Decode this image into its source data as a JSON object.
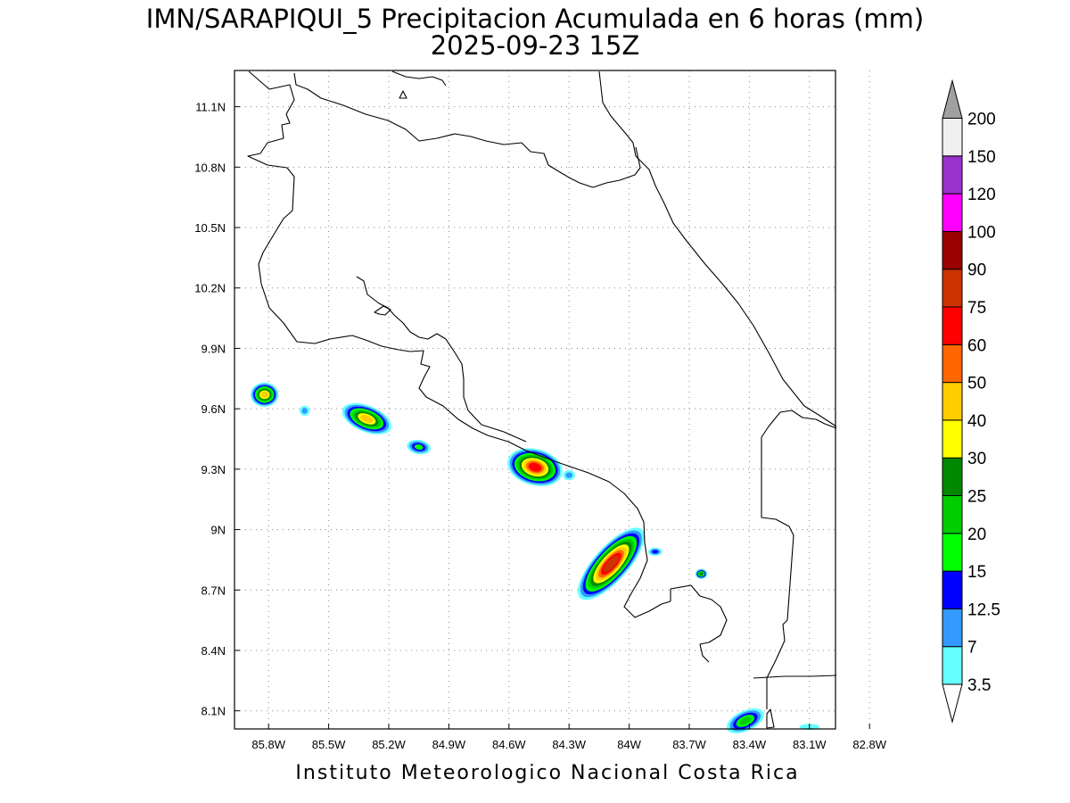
{
  "header": {
    "title_line1": "IMN/SARAPIQUI_5 Precipitacion Acumulada en 6 horas (mm)",
    "title_line2": "2025-09-23 15Z"
  },
  "footer": {
    "credit": "Instituto Meteorologico Nacional Costa Rica"
  },
  "axes": {
    "lon_ticks": [
      "85.8W",
      "85.5W",
      "85.2W",
      "84.9W",
      "84.6W",
      "84.3W",
      "84W",
      "83.7W",
      "83.4W",
      "83.1W",
      "82.8W"
    ],
    "lat_ticks": [
      "11.1N",
      "10.8N",
      "10.5N",
      "10.2N",
      "9.9N",
      "9.6N",
      "9.3N",
      "9N",
      "8.7N",
      "8.4N",
      "8.1N"
    ],
    "lon_range": [
      -85.97,
      -82.97
    ],
    "lat_range": [
      8.01,
      11.28
    ],
    "grid": "dotted"
  },
  "colorbar": {
    "levels": [
      {
        "label": "3.5",
        "color": "#66ffff"
      },
      {
        "label": "7",
        "color": "#3399ff"
      },
      {
        "label": "12.5",
        "color": "#0000ff"
      },
      {
        "label": "15",
        "color": "#00ff00"
      },
      {
        "label": "20",
        "color": "#00cc00"
      },
      {
        "label": "25",
        "color": "#008800"
      },
      {
        "label": "30",
        "color": "#ffff00"
      },
      {
        "label": "40",
        "color": "#ffcc00"
      },
      {
        "label": "50",
        "color": "#ff6600"
      },
      {
        "label": "60",
        "color": "#ff0000"
      },
      {
        "label": "75",
        "color": "#cc3300"
      },
      {
        "label": "90",
        "color": "#990000"
      },
      {
        "label": "100",
        "color": "#ff00ff"
      },
      {
        "label": "120",
        "color": "#9933cc"
      },
      {
        "label": "150",
        "color": "#f0f0f0"
      },
      {
        "label": "200",
        "color": "#a0a0a0"
      }
    ]
  },
  "precip_cells": [
    {
      "name": "cell-85.8w-9.67n",
      "lon": -85.82,
      "lat": 9.67,
      "rx": 0.07,
      "ry": 0.06,
      "rot": 0,
      "peak_mm": 40
    },
    {
      "name": "cell-85.6w-9.59n",
      "lon": -85.62,
      "lat": 9.59,
      "rx": 0.025,
      "ry": 0.025,
      "rot": 0,
      "peak_mm": 7
    },
    {
      "name": "cell-85.3w-9.55n",
      "lon": -85.31,
      "lat": 9.55,
      "rx": 0.13,
      "ry": 0.065,
      "rot": 22,
      "peak_mm": 40
    },
    {
      "name": "cell-85.05w-9.41n",
      "lon": -85.05,
      "lat": 9.41,
      "rx": 0.06,
      "ry": 0.035,
      "rot": 10,
      "peak_mm": 15
    },
    {
      "name": "cell-84.47w-9.31n",
      "lon": -84.47,
      "lat": 9.31,
      "rx": 0.14,
      "ry": 0.09,
      "rot": 15,
      "peak_mm": 60
    },
    {
      "name": "cell-84.3w-9.27n",
      "lon": -84.3,
      "lat": 9.27,
      "rx": 0.03,
      "ry": 0.025,
      "rot": 0,
      "peak_mm": 7
    },
    {
      "name": "cell-84.1w-8.83n",
      "lon": -84.09,
      "lat": 8.83,
      "rx": 0.23,
      "ry": 0.085,
      "rot": -48,
      "peak_mm": 75
    },
    {
      "name": "cell-83.87w-8.89n",
      "lon": -83.87,
      "lat": 8.89,
      "rx": 0.035,
      "ry": 0.02,
      "rot": 0,
      "peak_mm": 12.5
    },
    {
      "name": "cell-83.64w-8.78n",
      "lon": -83.64,
      "lat": 8.78,
      "rx": 0.03,
      "ry": 0.025,
      "rot": 0,
      "peak_mm": 25
    },
    {
      "name": "cell-83.42w-8.05n",
      "lon": -83.42,
      "lat": 8.05,
      "rx": 0.1,
      "ry": 0.05,
      "rot": -25,
      "peak_mm": 20
    },
    {
      "name": "cell-83.1w-8.02n",
      "lon": -83.1,
      "lat": 8.02,
      "rx": 0.05,
      "ry": 0.015,
      "rot": 0,
      "peak_mm": 3.5
    }
  ]
}
